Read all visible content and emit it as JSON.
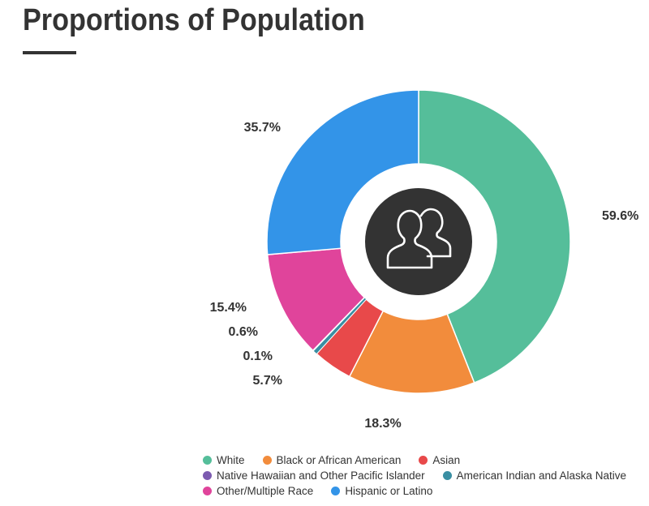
{
  "chart_data": {
    "type": "pie",
    "variant": "donut",
    "title": "Proportions of Population",
    "center_icon": "users-icon",
    "series": [
      {
        "name": "White",
        "value": 59.6,
        "label": "59.6%",
        "color": "#55BE9A"
      },
      {
        "name": "Black or African American",
        "value": 18.3,
        "label": "18.3%",
        "color": "#F28C3C"
      },
      {
        "name": "Asian",
        "value": 5.7,
        "label": "5.7%",
        "color": "#E8494A"
      },
      {
        "name": "American Indian and Alaska Native",
        "value": 0.6,
        "label": "0.6%",
        "color": "#3A8FA3"
      },
      {
        "name": "Native Hawaiian and Other Pacific Islander",
        "value": 0.1,
        "label": "0.1%",
        "color": "#7C5BB0"
      },
      {
        "name": "Other/Multiple Race",
        "value": 15.4,
        "label": "15.4%",
        "color": "#E0449B"
      },
      {
        "name": "Hispanic or Latino",
        "value": 35.7,
        "label": "35.7%",
        "color": "#3394E8"
      }
    ],
    "legend_placement": "bottom",
    "legend_rows": [
      [
        "White",
        "Black or African American",
        "Asian"
      ],
      [
        "Native Hawaiian and Other Pacific Islander",
        "American Indian and Alaska Native"
      ],
      [
        "Other/Multiple Race",
        "Hispanic or Latino"
      ]
    ]
  },
  "colors": {
    "title": "#333333",
    "center_disc": "#333333",
    "icon_stroke": "#ffffff"
  }
}
